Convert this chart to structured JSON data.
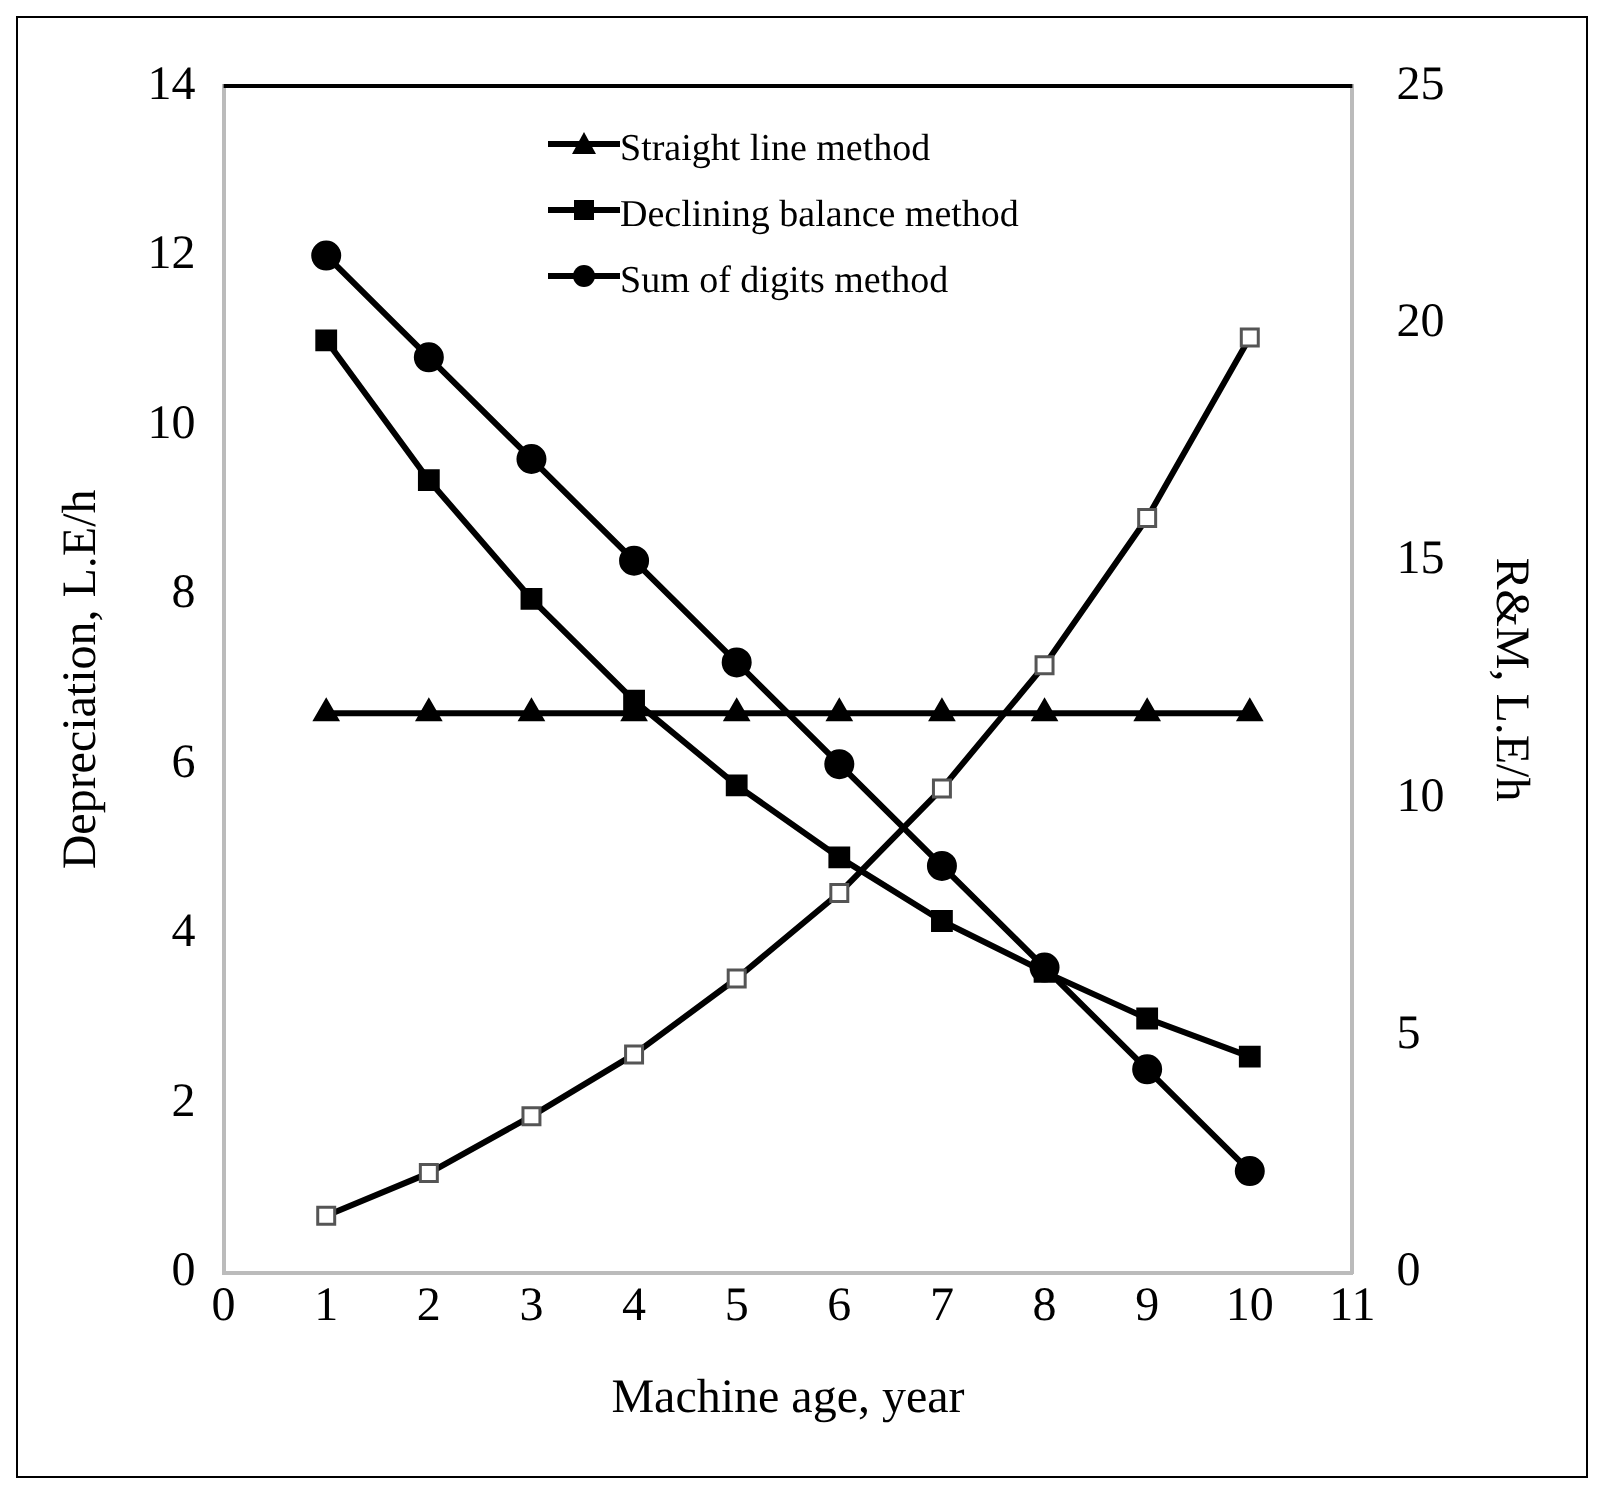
{
  "chart_data": {
    "type": "line",
    "xlabel": "Machine age, year",
    "ylabel": "Depreciation, L.E/h",
    "y2label": "R&M, L.E/h",
    "x": [
      1,
      2,
      3,
      4,
      5,
      6,
      7,
      8,
      9,
      10
    ],
    "xlim": [
      0,
      11
    ],
    "xticks": [
      0,
      1,
      2,
      3,
      4,
      5,
      6,
      7,
      8,
      9,
      10,
      11
    ],
    "ylim": [
      0,
      14
    ],
    "yticks": [
      0,
      2,
      4,
      6,
      8,
      10,
      12,
      14
    ],
    "y2lim": [
      0,
      25
    ],
    "y2ticks": [
      0,
      5,
      10,
      15,
      20,
      25
    ],
    "grid": false,
    "legend": "top",
    "series": [
      {
        "name": "Straight line method",
        "color": "#000000",
        "marker": "triangle",
        "values": [
          6.6,
          6.6,
          6.6,
          6.6,
          6.6,
          6.6,
          6.6,
          6.6,
          6.6,
          6.6
        ]
      },
      {
        "name": "Declining balance method",
        "color": "#000000",
        "marker": "square",
        "values": [
          11.0,
          9.35,
          7.95,
          6.75,
          5.75,
          4.9,
          4.15,
          3.55,
          3.0,
          2.55
        ]
      },
      {
        "name": "Sum of digits method",
        "color": "#000000",
        "marker": "circle",
        "values": [
          12.0,
          10.8,
          9.6,
          8.4,
          7.2,
          6.0,
          4.8,
          3.6,
          2.4,
          1.2
        ]
      },
      {
        "color": "#000000",
        "marker": "square",
        "axis": "y2",
        "values": [
          1.2,
          2.1,
          3.3,
          4.6,
          6.2,
          8.0,
          10.2,
          12.8,
          15.9,
          19.7
        ]
      }
    ]
  }
}
